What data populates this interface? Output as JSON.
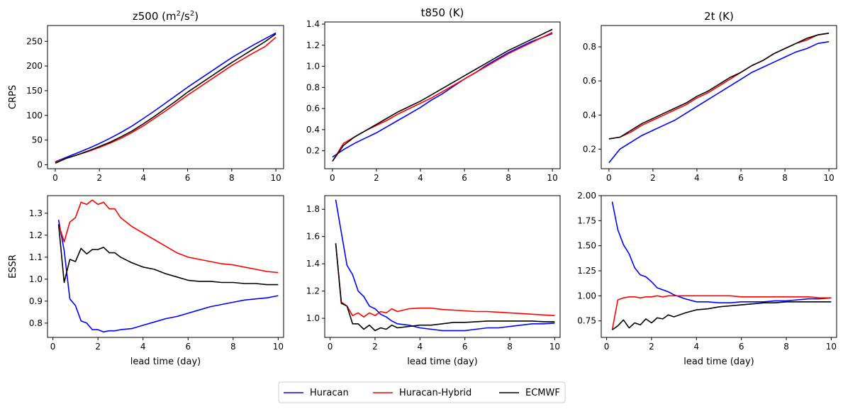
{
  "legend": {
    "entries": [
      {
        "name": "Huracan",
        "color": "#0000ff"
      },
      {
        "name": "Huracan-Hybrid",
        "color": "#ff0000"
      },
      {
        "name": "ECMWF",
        "color": "#000000"
      }
    ]
  },
  "chart_data": [
    {
      "id": "z500-crps",
      "type": "line",
      "title": "z500 (m²/s²)",
      "title_sup": true,
      "xlabel": "",
      "ylabel": "CRPS",
      "xlim": [
        -0.35,
        10.35
      ],
      "ylim": [
        -8,
        282
      ],
      "xticks": [
        0,
        2,
        4,
        6,
        8,
        10
      ],
      "yticks": [
        0,
        50,
        100,
        150,
        200,
        250
      ],
      "ytick_labels": [
        "0",
        "50",
        "100",
        "150",
        "200",
        "250"
      ],
      "x": [
        0,
        0.5,
        1,
        1.5,
        2,
        2.5,
        3,
        3.5,
        4,
        4.5,
        5,
        5.5,
        6,
        6.5,
        7,
        7.5,
        8,
        8.5,
        9,
        9.5,
        10
      ],
      "series": [
        {
          "name": "Huracan",
          "color": "#0000ff",
          "values": [
            6,
            15,
            24,
            33,
            43,
            54,
            66,
            79,
            94,
            109,
            125,
            141,
            157,
            172,
            187,
            202,
            217,
            230,
            243,
            255,
            267
          ]
        },
        {
          "name": "Huracan-Hybrid",
          "color": "#ff0000",
          "values": [
            5,
            13,
            20,
            27,
            35,
            44,
            54,
            66,
            79,
            94,
            109,
            125,
            141,
            156,
            171,
            186,
            201,
            214,
            227,
            239,
            258
          ]
        },
        {
          "name": "ECMWF",
          "color": "#000000",
          "values": [
            3,
            13,
            20,
            28,
            37,
            46,
            57,
            69,
            83,
            98,
            114,
            130,
            147,
            162,
            177,
            192,
            207,
            221,
            235,
            249,
            265
          ]
        }
      ]
    },
    {
      "id": "t850-crps",
      "type": "line",
      "title": "t850 (K)",
      "title_sup": false,
      "xlabel": "",
      "ylabel": "",
      "xlim": [
        -0.35,
        10.35
      ],
      "ylim": [
        0.03,
        1.42
      ],
      "xticks": [
        0,
        2,
        4,
        6,
        8,
        10
      ],
      "yticks": [
        0.2,
        0.4,
        0.6,
        0.8,
        1.0,
        1.2,
        1.4
      ],
      "ytick_labels": [
        "0.2",
        "0.4",
        "0.6",
        "0.8",
        "1.0",
        "1.2",
        "1.4"
      ],
      "x": [
        0,
        0.5,
        1,
        1.5,
        2,
        2.5,
        3,
        3.5,
        4,
        4.5,
        5,
        5.5,
        6,
        6.5,
        7,
        7.5,
        8,
        8.5,
        9,
        9.5,
        10
      ],
      "series": [
        {
          "name": "Huracan",
          "color": "#0000ff",
          "values": [
            0.14,
            0.21,
            0.27,
            0.32,
            0.37,
            0.43,
            0.49,
            0.55,
            0.61,
            0.68,
            0.74,
            0.81,
            0.88,
            0.94,
            1.01,
            1.07,
            1.13,
            1.18,
            1.23,
            1.27,
            1.31
          ]
        },
        {
          "name": "Huracan-Hybrid",
          "color": "#ff0000",
          "values": [
            0.1,
            0.27,
            0.33,
            0.39,
            0.44,
            0.49,
            0.55,
            0.6,
            0.65,
            0.7,
            0.76,
            0.82,
            0.88,
            0.94,
            1.0,
            1.06,
            1.12,
            1.17,
            1.22,
            1.27,
            1.32
          ]
        },
        {
          "name": "ECMWF",
          "color": "#000000",
          "values": [
            0.1,
            0.25,
            0.33,
            0.39,
            0.45,
            0.51,
            0.57,
            0.62,
            0.67,
            0.73,
            0.79,
            0.85,
            0.91,
            0.97,
            1.03,
            1.09,
            1.15,
            1.2,
            1.25,
            1.3,
            1.35
          ]
        }
      ]
    },
    {
      "id": "2t-crps",
      "type": "line",
      "title": "2t (K)",
      "title_sup": false,
      "xlabel": "",
      "ylabel": "",
      "xlim": [
        -0.35,
        10.35
      ],
      "ylim": [
        0.085,
        0.925
      ],
      "xticks": [
        0,
        2,
        4,
        6,
        8,
        10
      ],
      "yticks": [
        0.2,
        0.4,
        0.6,
        0.8
      ],
      "ytick_labels": [
        "0.2",
        "0.4",
        "0.6",
        "0.8"
      ],
      "x": [
        0,
        0.5,
        1,
        1.5,
        2,
        2.5,
        3,
        3.5,
        4,
        4.5,
        5,
        5.5,
        6,
        6.5,
        7,
        7.5,
        8,
        8.5,
        9,
        9.5,
        10
      ],
      "series": [
        {
          "name": "Huracan",
          "color": "#0000ff",
          "values": [
            0.12,
            0.2,
            0.24,
            0.28,
            0.31,
            0.34,
            0.37,
            0.41,
            0.45,
            0.49,
            0.53,
            0.57,
            0.61,
            0.65,
            0.68,
            0.71,
            0.74,
            0.77,
            0.79,
            0.82,
            0.83
          ]
        },
        {
          "name": "Huracan-Hybrid",
          "color": "#ff0000",
          "values": [
            0.26,
            0.27,
            0.3,
            0.34,
            0.37,
            0.4,
            0.43,
            0.46,
            0.5,
            0.53,
            0.57,
            0.61,
            0.65,
            0.69,
            0.72,
            0.76,
            0.79,
            0.82,
            0.84,
            0.87,
            0.88
          ]
        },
        {
          "name": "ECMWF",
          "color": "#000000",
          "values": [
            0.26,
            0.27,
            0.31,
            0.35,
            0.38,
            0.41,
            0.44,
            0.47,
            0.51,
            0.54,
            0.58,
            0.62,
            0.65,
            0.69,
            0.72,
            0.76,
            0.79,
            0.82,
            0.85,
            0.87,
            0.88
          ]
        }
      ]
    },
    {
      "id": "z500-essr",
      "type": "line",
      "title": "",
      "title_sup": false,
      "xlabel": "lead time (day)",
      "ylabel": "ESSR",
      "xlim": [
        -0.24,
        10.24
      ],
      "ylim": [
        0.735,
        1.38
      ],
      "xticks": [
        0,
        2,
        4,
        6,
        8,
        10
      ],
      "yticks": [
        0.8,
        0.9,
        1.0,
        1.1,
        1.2,
        1.3
      ],
      "ytick_labels": [
        "0.8",
        "0.9",
        "1.0",
        "1.1",
        "1.2",
        "1.3"
      ],
      "x": [
        0.25,
        0.5,
        0.75,
        1,
        1.25,
        1.5,
        1.75,
        2,
        2.25,
        2.5,
        2.75,
        3,
        3.5,
        4,
        4.5,
        5,
        5.5,
        6,
        6.5,
        7,
        7.5,
        8,
        8.5,
        9,
        9.5,
        10
      ],
      "series": [
        {
          "name": "Huracan",
          "color": "#0000ff",
          "values": [
            1.27,
            1.13,
            0.91,
            0.88,
            0.81,
            0.8,
            0.77,
            0.77,
            0.76,
            0.765,
            0.765,
            0.77,
            0.775,
            0.79,
            0.805,
            0.82,
            0.83,
            0.845,
            0.86,
            0.875,
            0.885,
            0.895,
            0.905,
            0.91,
            0.915,
            0.925
          ]
        },
        {
          "name": "Huracan-Hybrid",
          "color": "#ff0000",
          "values": [
            1.25,
            1.17,
            1.26,
            1.28,
            1.35,
            1.34,
            1.36,
            1.34,
            1.35,
            1.32,
            1.32,
            1.28,
            1.24,
            1.21,
            1.18,
            1.15,
            1.12,
            1.1,
            1.09,
            1.08,
            1.07,
            1.065,
            1.055,
            1.045,
            1.035,
            1.03
          ]
        },
        {
          "name": "ECMWF",
          "color": "#000000",
          "values": [
            1.25,
            0.985,
            1.09,
            1.08,
            1.14,
            1.115,
            1.135,
            1.135,
            1.145,
            1.12,
            1.12,
            1.1,
            1.075,
            1.055,
            1.045,
            1.025,
            1.01,
            0.995,
            0.99,
            0.99,
            0.985,
            0.985,
            0.98,
            0.98,
            0.975,
            0.975
          ]
        }
      ]
    },
    {
      "id": "t850-essr",
      "type": "line",
      "title": "",
      "title_sup": false,
      "xlabel": "lead time (day)",
      "ylabel": "",
      "xlim": [
        -0.24,
        10.24
      ],
      "ylim": [
        0.86,
        1.9
      ],
      "xticks": [
        0,
        2,
        4,
        6,
        8,
        10
      ],
      "yticks": [
        1.0,
        1.2,
        1.4,
        1.6,
        1.8
      ],
      "ytick_labels": [
        "1.0",
        "1.2",
        "1.4",
        "1.6",
        "1.8"
      ],
      "x": [
        0.25,
        0.5,
        0.75,
        1,
        1.25,
        1.5,
        1.75,
        2,
        2.25,
        2.5,
        2.75,
        3,
        3.5,
        4,
        4.5,
        5,
        5.5,
        6,
        6.5,
        7,
        7.5,
        8,
        8.5,
        9,
        9.5,
        10
      ],
      "series": [
        {
          "name": "Huracan",
          "color": "#0000ff",
          "values": [
            1.87,
            1.63,
            1.39,
            1.32,
            1.2,
            1.16,
            1.09,
            1.07,
            1.03,
            1.01,
            0.98,
            0.96,
            0.95,
            0.93,
            0.92,
            0.91,
            0.91,
            0.91,
            0.92,
            0.93,
            0.93,
            0.94,
            0.95,
            0.96,
            0.96,
            0.965
          ]
        },
        {
          "name": "Huracan-Hybrid",
          "color": "#ff0000",
          "values": [
            1.55,
            1.12,
            1.09,
            1.02,
            1.04,
            1.01,
            1.04,
            1.02,
            1.05,
            1.04,
            1.07,
            1.05,
            1.07,
            1.075,
            1.075,
            1.065,
            1.06,
            1.055,
            1.05,
            1.05,
            1.045,
            1.04,
            1.035,
            1.03,
            1.025,
            1.02
          ]
        },
        {
          "name": "ECMWF",
          "color": "#000000",
          "values": [
            1.55,
            1.11,
            1.09,
            0.96,
            0.96,
            0.92,
            0.95,
            0.91,
            0.93,
            0.92,
            0.95,
            0.93,
            0.94,
            0.95,
            0.95,
            0.96,
            0.97,
            0.97,
            0.975,
            0.98,
            0.98,
            0.98,
            0.98,
            0.98,
            0.975,
            0.975
          ]
        }
      ]
    },
    {
      "id": "2t-essr",
      "type": "line",
      "title": "",
      "title_sup": false,
      "xlabel": "lead time (day)",
      "ylabel": "",
      "xlim": [
        -0.24,
        10.24
      ],
      "ylim": [
        0.585,
        2.0
      ],
      "xticks": [
        0,
        2,
        4,
        6,
        8,
        10
      ],
      "yticks": [
        0.75,
        1.0,
        1.25,
        1.5,
        1.75,
        2.0
      ],
      "ytick_labels": [
        "0.75",
        "1.00",
        "1.25",
        "1.50",
        "1.75",
        "2.00"
      ],
      "x": [
        0.25,
        0.5,
        0.75,
        1,
        1.25,
        1.5,
        1.75,
        2,
        2.25,
        2.5,
        2.75,
        3,
        3.5,
        4,
        4.5,
        5,
        5.5,
        6,
        6.5,
        7,
        7.5,
        8,
        8.5,
        9,
        9.5,
        10
      ],
      "series": [
        {
          "name": "Huracan",
          "color": "#0000ff",
          "values": [
            1.94,
            1.66,
            1.51,
            1.42,
            1.28,
            1.21,
            1.19,
            1.14,
            1.08,
            1.06,
            1.04,
            1.01,
            0.97,
            0.94,
            0.94,
            0.93,
            0.93,
            0.94,
            0.94,
            0.94,
            0.95,
            0.95,
            0.96,
            0.97,
            0.97,
            0.98
          ]
        },
        {
          "name": "Huracan-Hybrid",
          "color": "#ff0000",
          "values": [
            0.66,
            0.96,
            0.98,
            0.99,
            0.99,
            0.98,
            0.99,
            0.99,
            1.0,
            0.99,
            1.0,
            1.0,
            1.0,
            1.0,
            1.0,
            1.0,
            1.0,
            0.99,
            0.99,
            0.99,
            0.99,
            0.99,
            0.99,
            0.99,
            0.98,
            0.98
          ]
        },
        {
          "name": "ECMWF",
          "color": "#000000",
          "values": [
            0.66,
            0.7,
            0.76,
            0.68,
            0.73,
            0.71,
            0.77,
            0.73,
            0.78,
            0.77,
            0.81,
            0.79,
            0.83,
            0.86,
            0.87,
            0.89,
            0.9,
            0.91,
            0.92,
            0.93,
            0.93,
            0.94,
            0.94,
            0.94,
            0.94,
            0.94
          ]
        }
      ]
    }
  ]
}
